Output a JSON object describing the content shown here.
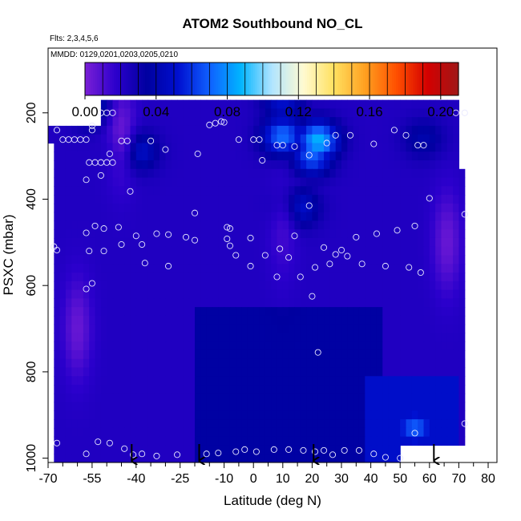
{
  "chart_data": {
    "type": "heatmap",
    "title": "ATOM2 Southbound NO_CL",
    "subtitle_flights": "Flts: 2,3,4,5,6",
    "subtitle_dates": "MMDD: 0129,0201,0203,0205,0210",
    "xlabel": "Latitude (deg N)",
    "ylabel": "PSXC (mbar)",
    "xlim": [
      -70,
      83
    ],
    "ylim": [
      1010,
      50
    ],
    "x_ticks": [
      -70,
      -55,
      -40,
      -25,
      -10,
      0,
      10,
      20,
      30,
      40,
      50,
      60,
      70,
      80
    ],
    "x_minor_ticks": [
      -65,
      -60,
      -50,
      -45,
      -35,
      -30,
      -20,
      -15,
      -5,
      5,
      15,
      25,
      35,
      45,
      55,
      65,
      75
    ],
    "y_ticks": [
      200,
      400,
      600,
      800,
      1000
    ],
    "colorbar": {
      "min": 0.0,
      "max": 0.21,
      "tick_values": [
        0.0,
        0.04,
        0.08,
        0.12,
        0.16,
        0.2
      ],
      "tick_labels": [
        "0.00",
        "0.04",
        "0.08",
        "0.12",
        "0.16",
        "0.20"
      ],
      "colors": [
        "#7b1fd6",
        "#2b00cc",
        "#0000a0",
        "#0010d0",
        "#1060ff",
        "#00b4ff",
        "#b0e4ff",
        "#fffbd2",
        "#ffe060",
        "#ffa020",
        "#ff5000",
        "#d40000",
        "#a01818"
      ]
    },
    "heat_field": {
      "lat_range": [
        -68,
        72
      ],
      "pressure_range": [
        170,
        1000
      ],
      "background_value": 0.022,
      "blue_floor_value": 0.036,
      "features": [
        {
          "lat": 10,
          "p": 255,
          "value": 0.075
        },
        {
          "lat": 22,
          "p": 265,
          "value": 0.088
        },
        {
          "lat": 20,
          "p": 300,
          "value": 0.07
        },
        {
          "lat": -55,
          "p": 185,
          "value": 0.055
        },
        {
          "lat": 10,
          "p": 180,
          "value": 0.05
        },
        {
          "lat": -40,
          "p": 290,
          "value": 0.055
        },
        {
          "lat": 15,
          "p": 420,
          "value": 0.055
        },
        {
          "lat": 55,
          "p": 930,
          "value": 0.07
        },
        {
          "lat": 58,
          "p": 260,
          "value": 0.04
        }
      ],
      "purple_features": [
        {
          "lat": -60,
          "p": 700,
          "value": 0.0
        },
        {
          "lat": -45,
          "p": 245,
          "value": 0.0
        },
        {
          "lat": 66,
          "p": 500,
          "value": 0.0
        },
        {
          "lat": 10,
          "p": 470,
          "value": 0.01
        }
      ]
    },
    "observations": [
      {
        "lat": -67,
        "p": 240
      },
      {
        "lat": -65,
        "p": 262
      },
      {
        "lat": -63,
        "p": 262
      },
      {
        "lat": -61,
        "p": 262
      },
      {
        "lat": -59,
        "p": 262
      },
      {
        "lat": -57,
        "p": 262
      },
      {
        "lat": -55,
        "p": 230
      },
      {
        "lat": -55,
        "p": 240
      },
      {
        "lat": -52,
        "p": 200
      },
      {
        "lat": -50,
        "p": 200
      },
      {
        "lat": -48,
        "p": 200
      },
      {
        "lat": -56,
        "p": 315
      },
      {
        "lat": -54,
        "p": 315
      },
      {
        "lat": -52,
        "p": 315
      },
      {
        "lat": -50,
        "p": 315
      },
      {
        "lat": -48,
        "p": 315
      },
      {
        "lat": -49,
        "p": 295
      },
      {
        "lat": -45,
        "p": 265
      },
      {
        "lat": -43,
        "p": 265
      },
      {
        "lat": -35,
        "p": 265
      },
      {
        "lat": -30,
        "p": 285
      },
      {
        "lat": -19,
        "p": 295
      },
      {
        "lat": -15,
        "p": 228
      },
      {
        "lat": -13,
        "p": 224
      },
      {
        "lat": -11,
        "p": 220
      },
      {
        "lat": -10,
        "p": 222
      },
      {
        "lat": -5,
        "p": 262
      },
      {
        "lat": 0,
        "p": 262
      },
      {
        "lat": 2,
        "p": 262
      },
      {
        "lat": 3,
        "p": 310
      },
      {
        "lat": 8,
        "p": 275
      },
      {
        "lat": 10,
        "p": 275
      },
      {
        "lat": 14,
        "p": 278
      },
      {
        "lat": 19,
        "p": 298
      },
      {
        "lat": 25,
        "p": 270
      },
      {
        "lat": 28,
        "p": 252
      },
      {
        "lat": 33,
        "p": 252
      },
      {
        "lat": 41,
        "p": 272
      },
      {
        "lat": 48,
        "p": 240
      },
      {
        "lat": 52,
        "p": 252
      },
      {
        "lat": 56,
        "p": 275
      },
      {
        "lat": 58,
        "p": 275
      },
      {
        "lat": 69,
        "p": 200
      },
      {
        "lat": 72,
        "p": 200
      },
      {
        "lat": -57,
        "p": 355
      },
      {
        "lat": -52,
        "p": 345
      },
      {
        "lat": -42,
        "p": 382
      },
      {
        "lat": -20,
        "p": 432
      },
      {
        "lat": 60,
        "p": 398
      },
      {
        "lat": 19,
        "p": 415
      },
      {
        "lat": 72,
        "p": 435
      },
      {
        "lat": -68,
        "p": 510
      },
      {
        "lat": -67,
        "p": 518
      },
      {
        "lat": -57,
        "p": 478
      },
      {
        "lat": -54,
        "p": 462
      },
      {
        "lat": -51,
        "p": 468
      },
      {
        "lat": -46,
        "p": 465
      },
      {
        "lat": -40,
        "p": 485
      },
      {
        "lat": -38,
        "p": 505
      },
      {
        "lat": -29,
        "p": 482
      },
      {
        "lat": -33,
        "p": 480
      },
      {
        "lat": -23,
        "p": 488
      },
      {
        "lat": -20,
        "p": 495
      },
      {
        "lat": -9,
        "p": 465
      },
      {
        "lat": -8,
        "p": 468
      },
      {
        "lat": -9,
        "p": 492
      },
      {
        "lat": -8,
        "p": 508
      },
      {
        "lat": -1,
        "p": 490
      },
      {
        "lat": -6,
        "p": 530
      },
      {
        "lat": 4,
        "p": 530
      },
      {
        "lat": 9,
        "p": 515
      },
      {
        "lat": 12,
        "p": 535
      },
      {
        "lat": 14,
        "p": 485
      },
      {
        "lat": 21,
        "p": 558
      },
      {
        "lat": 24,
        "p": 512
      },
      {
        "lat": 28,
        "p": 528
      },
      {
        "lat": 30,
        "p": 518
      },
      {
        "lat": 32,
        "p": 532
      },
      {
        "lat": 35,
        "p": 488
      },
      {
        "lat": 37,
        "p": 550
      },
      {
        "lat": 42,
        "p": 480
      },
      {
        "lat": 45,
        "p": 555
      },
      {
        "lat": 49,
        "p": 472
      },
      {
        "lat": 53,
        "p": 558
      },
      {
        "lat": 55,
        "p": 462
      },
      {
        "lat": 57,
        "p": 570
      },
      {
        "lat": -56,
        "p": 520
      },
      {
        "lat": -51,
        "p": 520
      },
      {
        "lat": -45,
        "p": 505
      },
      {
        "lat": -37,
        "p": 548
      },
      {
        "lat": -29,
        "p": 555
      },
      {
        "lat": -1,
        "p": 555
      },
      {
        "lat": 8,
        "p": 580
      },
      {
        "lat": 16,
        "p": 580
      },
      {
        "lat": 26,
        "p": 550
      },
      {
        "lat": -57,
        "p": 608
      },
      {
        "lat": -55,
        "p": 595
      },
      {
        "lat": 20,
        "p": 625
      },
      {
        "lat": 22,
        "p": 755
      },
      {
        "lat": 55,
        "p": 942
      },
      {
        "lat": 72,
        "p": 920
      },
      {
        "lat": -67,
        "p": 965
      },
      {
        "lat": -53,
        "p": 962
      },
      {
        "lat": -57,
        "p": 990
      },
      {
        "lat": -49,
        "p": 965
      },
      {
        "lat": -44,
        "p": 978
      },
      {
        "lat": -41,
        "p": 992
      },
      {
        "lat": -38,
        "p": 990
      },
      {
        "lat": -33,
        "p": 995
      },
      {
        "lat": -26,
        "p": 992
      },
      {
        "lat": -16,
        "p": 990
      },
      {
        "lat": -12,
        "p": 988
      },
      {
        "lat": -6,
        "p": 985
      },
      {
        "lat": -3,
        "p": 980
      },
      {
        "lat": 1,
        "p": 985
      },
      {
        "lat": 7,
        "p": 980
      },
      {
        "lat": 12,
        "p": 980
      },
      {
        "lat": 17,
        "p": 982
      },
      {
        "lat": 21,
        "p": 985
      },
      {
        "lat": 24,
        "p": 982
      },
      {
        "lat": 27,
        "p": 992
      },
      {
        "lat": 31,
        "p": 982
      },
      {
        "lat": 36,
        "p": 982
      },
      {
        "lat": 41,
        "p": 990
      },
      {
        "lat": 45,
        "p": 998
      },
      {
        "lat": 50,
        "p": 1000
      }
    ],
    "arrows_lat": [
      -41.5,
      -18.5,
      20.5,
      61.5
    ]
  }
}
